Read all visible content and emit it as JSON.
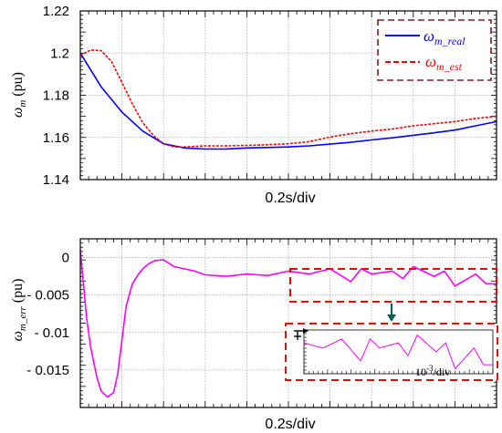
{
  "chart_data": [
    {
      "type": "line",
      "ylabel": "ω",
      "ylabel_sub": "m",
      "ylabel_unit": " (pu)",
      "xlabel": "0.2s/div",
      "ylim": [
        1.14,
        1.22
      ],
      "xlim": [
        0,
        2.0
      ],
      "ytick_labels": [
        "1.22",
        "1.2",
        "1.18",
        "1.16",
        "1.14"
      ],
      "ytick_values": [
        1.22,
        1.2,
        1.18,
        1.16,
        1.14
      ],
      "grid": true,
      "legend": {
        "placement": "top-right",
        "entries": [
          {
            "sym": "ω",
            "sub": "m_real",
            "color": "#0000ff",
            "style": "solid"
          },
          {
            "sym": "ω",
            "sub": "m_est",
            "color": "#ff0000",
            "style": "dashed"
          }
        ],
        "box_color": "#8b1a1a"
      },
      "series": [
        {
          "color": "#0000ff",
          "style": "solid",
          "x": [
            0,
            0.1,
            0.2,
            0.3,
            0.4,
            0.5,
            0.6,
            0.7,
            0.8,
            0.9,
            1.0,
            1.1,
            1.2,
            1.3,
            1.4,
            1.5,
            1.6,
            1.7,
            1.8,
            1.9,
            2.0
          ],
          "y": [
            1.2,
            1.184,
            1.172,
            1.163,
            1.157,
            1.155,
            1.1545,
            1.1545,
            1.155,
            1.1552,
            1.1555,
            1.156,
            1.1568,
            1.1577,
            1.1588,
            1.1598,
            1.161,
            1.1622,
            1.1635,
            1.1655,
            1.1675
          ]
        },
        {
          "color": "#ff0000",
          "style": "dashed",
          "x": [
            0,
            0.05,
            0.1,
            0.15,
            0.2,
            0.25,
            0.3,
            0.35,
            0.4,
            0.45,
            0.5,
            0.6,
            0.7,
            0.8,
            0.9,
            1.0,
            1.1,
            1.2,
            1.3,
            1.4,
            1.5,
            1.6,
            1.7,
            1.8,
            1.9,
            2.0
          ],
          "y": [
            1.199,
            1.2015,
            1.2012,
            1.196,
            1.186,
            1.176,
            1.167,
            1.161,
            1.157,
            1.1555,
            1.1555,
            1.156,
            1.156,
            1.1562,
            1.1565,
            1.157,
            1.158,
            1.1602,
            1.1618,
            1.163,
            1.164,
            1.1655,
            1.1665,
            1.1675,
            1.169,
            1.17
          ]
        }
      ]
    },
    {
      "type": "line",
      "ylabel": "ω",
      "ylabel_sub": "m_err",
      "ylabel_unit": " (pu)",
      "xlabel": "0.2s/div",
      "ylim": [
        -0.02,
        0.0025
      ],
      "xlim": [
        0,
        2.0
      ],
      "ytick_labels": [
        "0",
        "- 0.005",
        "- 0.01",
        "- 0.015"
      ],
      "ytick_values": [
        0,
        -0.005,
        -0.01,
        -0.015
      ],
      "grid": true,
      "series": [
        {
          "color": "#ff00ff",
          "style": "solid",
          "x": [
            0,
            0.01,
            0.03,
            0.05,
            0.08,
            0.1,
            0.13,
            0.16,
            0.18,
            0.2,
            0.22,
            0.25,
            0.28,
            0.3,
            0.33,
            0.36,
            0.4,
            0.45,
            0.5,
            0.55,
            0.6,
            0.7,
            0.8,
            0.9,
            1.0,
            1.1,
            1.2,
            1.3,
            1.35,
            1.4,
            1.5,
            1.55,
            1.6,
            1.7,
            1.75,
            1.8,
            1.9,
            1.95,
            2.0
          ],
          "y": [
            0.001,
            -0.002,
            -0.008,
            -0.012,
            -0.016,
            -0.0178,
            -0.0186,
            -0.018,
            -0.0155,
            -0.011,
            -0.0065,
            -0.0035,
            -0.0022,
            -0.0015,
            -0.0008,
            -0.0004,
            -0.0003,
            -0.0012,
            -0.0015,
            -0.0018,
            -0.0023,
            -0.0025,
            -0.0022,
            -0.0024,
            -0.0018,
            -0.0022,
            -0.0015,
            -0.0032,
            -0.0015,
            -0.0022,
            -0.0018,
            -0.0028,
            -0.0012,
            -0.0025,
            -0.0018,
            -0.0038,
            -0.0022,
            -0.0035,
            -0.0035
          ]
        }
      ],
      "annotations": {
        "box_color": "#ff0000",
        "arrow_color": "#006060",
        "inset_label": "10",
        "inset_label_exp": "-3",
        "inset_label_unit": "/div"
      }
    }
  ]
}
